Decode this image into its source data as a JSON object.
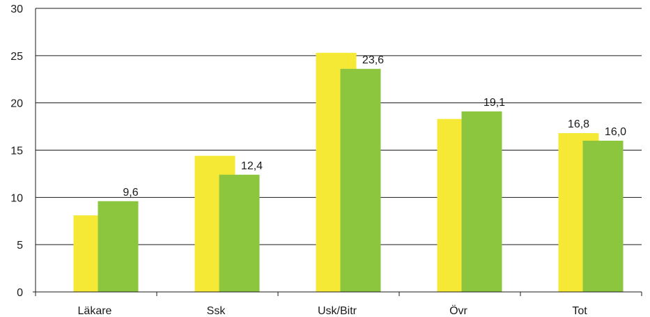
{
  "chart_data": {
    "type": "bar",
    "title": "",
    "xlabel": "",
    "ylabel": "",
    "categories": [
      "Läkare",
      "Ssk",
      "Usk/Bitr",
      "Övr",
      "Tot"
    ],
    "series": [
      {
        "values": [
          8.1,
          14.4,
          25.3,
          18.3,
          16.8
        ],
        "color": "#f5e936",
        "labels": [
          "",
          "",
          "",
          "",
          "16,8"
        ]
      },
      {
        "values": [
          9.6,
          12.4,
          23.6,
          19.1,
          16.0
        ],
        "color": "#8cc63f",
        "labels": [
          "9,6",
          "12,4",
          "23,6",
          "19,1",
          "16,0"
        ]
      }
    ],
    "ylim": [
      0,
      30
    ],
    "yticks": [
      "0",
      "5",
      "10",
      "15",
      "20",
      "25",
      "30"
    ],
    "grid": true
  }
}
